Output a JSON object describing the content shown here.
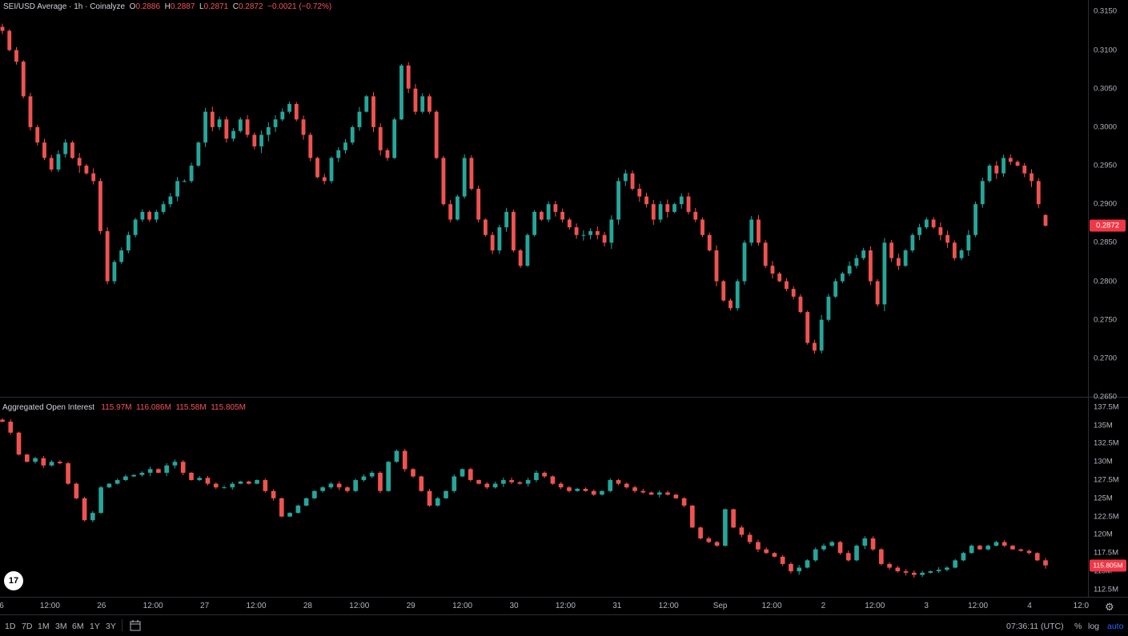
{
  "price_legend": {
    "title": "SEI/USD Average · 1h · Coinalyze",
    "o_label": "O",
    "o": "0.2886",
    "h_label": "H",
    "h": "0.2887",
    "l_label": "L",
    "l": "0.2871",
    "c_label": "C",
    "c": "0.2872",
    "change": "−0.0021 (−0.72%)"
  },
  "oi_legend": {
    "title": "Aggregated Open Interest",
    "o": "115.97M",
    "h": "116.086M",
    "l": "115.58M",
    "c": "115.805M"
  },
  "price_axis": [
    "0.3150",
    "0.3100",
    "0.3050",
    "0.3000",
    "0.2950",
    "0.2900",
    "0.2850",
    "0.2800",
    "0.2750",
    "0.2700",
    "0.2650"
  ],
  "oi_axis": [
    "137.5M",
    "135M",
    "132.5M",
    "130M",
    "127.5M",
    "125M",
    "122.5M",
    "120M",
    "117.5M",
    "115M",
    "112.5M"
  ],
  "price_tag": "0.2872",
  "oi_tag": "115.805M",
  "time_axis": [
    "6",
    "12:00",
    "26",
    "12:00",
    "27",
    "12:00",
    "28",
    "12:00",
    "29",
    "12:00",
    "30",
    "12:00",
    "31",
    "12:00",
    "Sep",
    "12:00",
    "2",
    "12:00",
    "3",
    "12:00",
    "4",
    "12:0"
  ],
  "bottom_bar": {
    "ranges": [
      "1D",
      "7D",
      "1M",
      "3M",
      "6M",
      "1Y",
      "3Y"
    ],
    "clock": "07:36:11 (UTC)",
    "percent": "%",
    "log": "log",
    "auto": "auto"
  },
  "logo_text": "17",
  "colors": {
    "up": "#26a69a",
    "down": "#ef5350",
    "tag": "#f23645",
    "grid": "#2a2e39"
  },
  "chart_data": [
    {
      "type": "candlestick",
      "title": "SEI/USD Average · 1h · Coinalyze",
      "ylim": [
        0.265,
        0.3165
      ],
      "y_ticks": [
        0.315,
        0.31,
        0.305,
        0.3,
        0.295,
        0.29,
        0.285,
        0.28,
        0.275,
        0.27,
        0.265
      ],
      "x_ticks": [
        "6",
        "12:00",
        "26",
        "12:00",
        "27",
        "12:00",
        "28",
        "12:00",
        "29",
        "12:00",
        "30",
        "12:00",
        "31",
        "12:00",
        "Sep",
        "12:00",
        "2",
        "12:00",
        "3",
        "12:00",
        "4",
        "12:0"
      ],
      "close_path": [
        0.3125,
        0.31,
        0.3085,
        0.304,
        0.3,
        0.298,
        0.296,
        0.2945,
        0.2965,
        0.298,
        0.296,
        0.295,
        0.294,
        0.293,
        0.2865,
        0.28,
        0.2825,
        0.284,
        0.286,
        0.288,
        0.289,
        0.288,
        0.289,
        0.29,
        0.291,
        0.293,
        0.293,
        0.295,
        0.298,
        0.302,
        0.3,
        0.301,
        0.2985,
        0.2995,
        0.301,
        0.299,
        0.2975,
        0.299,
        0.3,
        0.301,
        0.302,
        0.303,
        0.301,
        0.299,
        0.296,
        0.2935,
        0.293,
        0.296,
        0.297,
        0.298,
        0.3,
        0.302,
        0.304,
        0.3,
        0.297,
        0.296,
        0.301,
        0.308,
        0.305,
        0.302,
        0.304,
        0.302,
        0.296,
        0.29,
        0.288,
        0.291,
        0.296,
        0.292,
        0.288,
        0.286,
        0.284,
        0.287,
        0.289,
        0.284,
        0.282,
        0.286,
        0.289,
        0.288,
        0.29,
        0.289,
        0.288,
        0.287,
        0.286,
        0.286,
        0.2865,
        0.286,
        0.285,
        0.288,
        0.293,
        0.294,
        0.292,
        0.291,
        0.29,
        0.288,
        0.29,
        0.289,
        0.29,
        0.291,
        0.289,
        0.288,
        0.286,
        0.284,
        0.28,
        0.2775,
        0.2765,
        0.28,
        0.285,
        0.288,
        0.285,
        0.282,
        0.281,
        0.28,
        0.279,
        0.278,
        0.276,
        0.272,
        0.271,
        0.275,
        0.278,
        0.28,
        0.281,
        0.282,
        0.283,
        0.284,
        0.28,
        0.277,
        0.285,
        0.283,
        0.282,
        0.284,
        0.286,
        0.287,
        0.288,
        0.287,
        0.286,
        0.285,
        0.283,
        0.284,
        0.286,
        0.29,
        0.293,
        0.295,
        0.294,
        0.296,
        0.2955,
        0.295,
        0.294,
        0.293,
        0.29,
        0.2872
      ],
      "last_candle": {
        "o": 0.2886,
        "h": 0.2887,
        "l": 0.2871,
        "c": 0.2872
      }
    },
    {
      "type": "candlestick",
      "title": "Aggregated Open Interest",
      "ylim": [
        111.5,
        138.8
      ],
      "y_ticks": [
        137.5,
        135,
        132.5,
        130,
        127.5,
        125,
        122.5,
        120,
        117.5,
        115,
        112.5
      ],
      "close_path": [
        135.5,
        134.0,
        131.0,
        130.0,
        130.5,
        129.5,
        130.0,
        129.8,
        127.0,
        125.0,
        122.0,
        123.0,
        126.5,
        127.0,
        127.5,
        128.0,
        128.2,
        128.5,
        129.0,
        128.5,
        129.5,
        130.0,
        128.5,
        127.5,
        127.8,
        127.0,
        126.5,
        126.5,
        127.0,
        127.3,
        127.0,
        127.5,
        126.0,
        125.0,
        122.5,
        123.0,
        124.0,
        125.0,
        126.0,
        126.5,
        127.0,
        126.5,
        126.0,
        127.5,
        128.0,
        128.5,
        126.0,
        130.0,
        131.5,
        129.0,
        128.0,
        126.0,
        124.0,
        125.0,
        126.0,
        128.0,
        129.0,
        127.5,
        127.0,
        126.5,
        127.0,
        127.5,
        127.2,
        127.0,
        127.5,
        128.5,
        128.0,
        127.0,
        126.5,
        126.0,
        126.3,
        126.0,
        125.5,
        126.0,
        127.5,
        127.0,
        126.5,
        126.0,
        125.8,
        125.5,
        125.8,
        125.5,
        125.0,
        124.0,
        121.0,
        119.5,
        119.0,
        118.5,
        123.5,
        121.0,
        120.0,
        119.0,
        118.0,
        117.5,
        117.0,
        116.0,
        115.0,
        115.5,
        116.5,
        118.0,
        118.5,
        119.0,
        117.5,
        116.5,
        118.5,
        119.5,
        118.0,
        116.0,
        115.5,
        115.0,
        114.8,
        114.5,
        114.8,
        115.0,
        115.2,
        115.5,
        116.5,
        117.5,
        118.5,
        118.0,
        118.5,
        119.0,
        118.5,
        118.0,
        117.8,
        117.5,
        116.5,
        115.805
      ]
    }
  ]
}
